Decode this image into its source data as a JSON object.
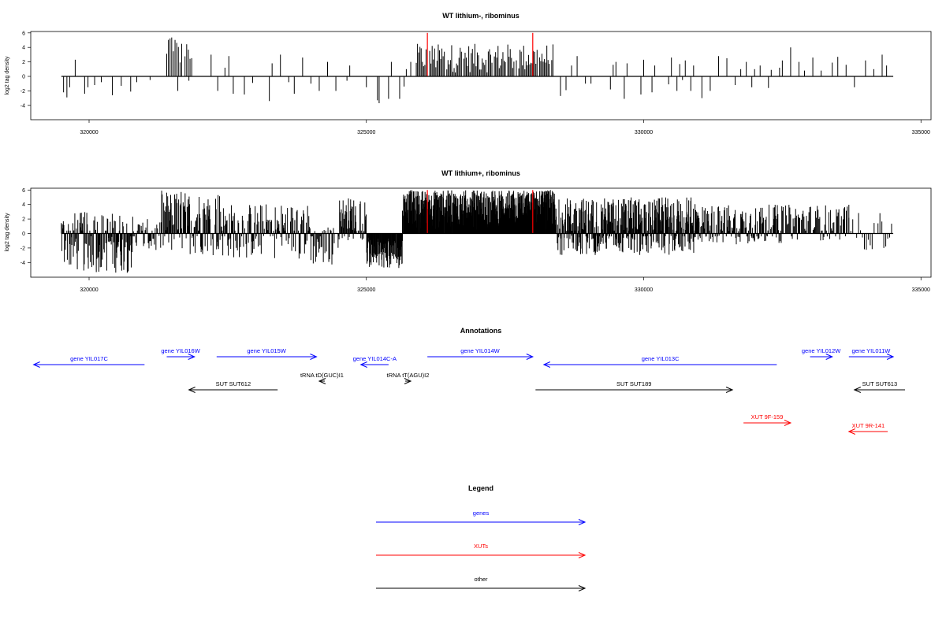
{
  "colors": {
    "gene": "#0000ff",
    "xut": "#ff0000",
    "other": "#000000",
    "marker": "#ff0000",
    "bars": "#000000"
  },
  "chart_data": [
    {
      "type": "bar",
      "title": "WT lithium-, ribominus",
      "ylabel": "log2 tag density",
      "xlim": [
        319000,
        335000
      ],
      "ylim": [
        -6,
        6.5
      ],
      "x_ticks": [
        "320000",
        "325000",
        "330000",
        "335000"
      ],
      "y_ticks": [
        "6",
        "4",
        "2",
        "0",
        "-2",
        "-4"
      ],
      "baseline": [
        319500,
        334500
      ],
      "markers": [
        326100,
        328000
      ],
      "dense_regions": [
        {
          "start": 325900,
          "end": 328400,
          "min": 0.5,
          "max": 4.5,
          "step": 22
        },
        {
          "start": 321400,
          "end": 321850,
          "min": 1.5,
          "max": 5.4,
          "step": 30
        }
      ],
      "sparse_bars": [
        [
          319540,
          -2.2
        ],
        [
          319600,
          -2.9
        ],
        [
          319650,
          -1.5
        ],
        [
          319750,
          2.3
        ],
        [
          319920,
          -2.4
        ],
        [
          319980,
          -1.5
        ],
        [
          320100,
          -1.2
        ],
        [
          320220,
          -0.8
        ],
        [
          320420,
          -2.6
        ],
        [
          320580,
          -1.3
        ],
        [
          320750,
          -2.1
        ],
        [
          320860,
          -0.8
        ],
        [
          321100,
          -0.5
        ],
        [
          321600,
          -2.0
        ],
        [
          321800,
          -0.6
        ],
        [
          322200,
          3.0
        ],
        [
          322320,
          -2.0
        ],
        [
          322450,
          1.2
        ],
        [
          322520,
          2.8
        ],
        [
          322600,
          -2.4
        ],
        [
          322800,
          -2.5
        ],
        [
          322950,
          -0.9
        ],
        [
          323250,
          -3.4
        ],
        [
          323300,
          1.8
        ],
        [
          323450,
          3.0
        ],
        [
          323600,
          -0.8
        ],
        [
          323700,
          -2.4
        ],
        [
          323850,
          2.6
        ],
        [
          324000,
          -1.0
        ],
        [
          324150,
          -2.0
        ],
        [
          324300,
          2.0
        ],
        [
          324450,
          -2.0
        ],
        [
          324650,
          -0.6
        ],
        [
          324700,
          1.5
        ],
        [
          325000,
          -1.5
        ],
        [
          325200,
          -3.3
        ],
        [
          325230,
          -3.7
        ],
        [
          325400,
          -3.1
        ],
        [
          325450,
          2.0
        ],
        [
          325600,
          -3.1
        ],
        [
          325680,
          -1.4
        ],
        [
          325720,
          1.0
        ],
        [
          325800,
          2.0
        ],
        [
          328500,
          -2.7
        ],
        [
          328600,
          -1.9
        ],
        [
          328700,
          1.5
        ],
        [
          328800,
          2.8
        ],
        [
          328950,
          -1.0
        ],
        [
          329050,
          -1.0
        ],
        [
          329400,
          -1.8
        ],
        [
          329450,
          1.6
        ],
        [
          329500,
          2.0
        ],
        [
          329650,
          -3.1
        ],
        [
          329700,
          1.8
        ],
        [
          329950,
          -2.5
        ],
        [
          330000,
          2.3
        ],
        [
          330150,
          -2.2
        ],
        [
          330200,
          1.5
        ],
        [
          330450,
          -1.1
        ],
        [
          330500,
          2.6
        ],
        [
          330600,
          -2.0
        ],
        [
          330650,
          1.7
        ],
        [
          330700,
          -0.5
        ],
        [
          330750,
          2.2
        ],
        [
          330850,
          -2.0
        ],
        [
          330900,
          1.5
        ],
        [
          331050,
          -3.0
        ],
        [
          331200,
          -2.0
        ],
        [
          331350,
          2.8
        ],
        [
          331500,
          2.5
        ],
        [
          331650,
          -1.2
        ],
        [
          331750,
          1.0
        ],
        [
          331850,
          2.0
        ],
        [
          331950,
          -1.5
        ],
        [
          332000,
          1.0
        ],
        [
          332100,
          1.5
        ],
        [
          332250,
          -1.6
        ],
        [
          332300,
          0.9
        ],
        [
          332450,
          1.2
        ],
        [
          332500,
          2.2
        ],
        [
          332650,
          4.0
        ],
        [
          332800,
          2.0
        ],
        [
          332900,
          0.8
        ],
        [
          333050,
          2.6
        ],
        [
          333200,
          0.8
        ],
        [
          333400,
          1.9
        ],
        [
          333500,
          2.7
        ],
        [
          333650,
          1.6
        ],
        [
          333800,
          -1.5
        ],
        [
          334000,
          2.2
        ],
        [
          334150,
          1.0
        ],
        [
          334300,
          3.0
        ],
        [
          334380,
          1.5
        ]
      ]
    },
    {
      "type": "bar",
      "title": "WT lithium+, ribominus",
      "ylabel": "log2 tag density",
      "xlim": [
        319000,
        335000
      ],
      "ylim": [
        -6,
        6.5
      ],
      "x_ticks": [
        "320000",
        "325000",
        "330000",
        "335000"
      ],
      "y_ticks": [
        "6",
        "4",
        "2",
        "0",
        "-2",
        "-4"
      ],
      "baseline": [
        319500,
        334500
      ],
      "markers": [
        326100,
        328000
      ],
      "dense_regions": [
        {
          "start": 319500,
          "end": 320800,
          "min": -5.5,
          "max": 3.0,
          "step": 9
        },
        {
          "start": 320800,
          "end": 321300,
          "min": -3.0,
          "max": 2.0,
          "step": 14
        },
        {
          "start": 321300,
          "end": 322400,
          "min": -3.0,
          "max": 6.0,
          "step": 9
        },
        {
          "start": 322400,
          "end": 324000,
          "min": -3.5,
          "max": 4.2,
          "step": 11
        },
        {
          "start": 324000,
          "end": 324500,
          "min": -4.5,
          "max": 1.0,
          "step": 14
        },
        {
          "start": 324500,
          "end": 325000,
          "min": -1.0,
          "max": 5.0,
          "step": 8
        },
        {
          "start": 325000,
          "end": 325650,
          "min": -4.8,
          "max": -0.5,
          "step": 5
        },
        {
          "start": 325650,
          "end": 328400,
          "min": 0.5,
          "max": 6.0,
          "step": 4
        },
        {
          "start": 328400,
          "end": 331000,
          "min": -3.0,
          "max": 5.0,
          "step": 6
        },
        {
          "start": 331000,
          "end": 332500,
          "min": -1.5,
          "max": 4.0,
          "step": 10
        },
        {
          "start": 332500,
          "end": 333700,
          "min": -1.0,
          "max": 4.0,
          "step": 15
        },
        {
          "start": 333700,
          "end": 334500,
          "min": -2.5,
          "max": 3.0,
          "step": 35
        }
      ],
      "sparse_bars": []
    }
  ],
  "annotations": {
    "title": "Annotations",
    "features": [
      {
        "label": "gene YIL017C",
        "type": "gene",
        "start": 319000,
        "end": 321000,
        "strand": "-",
        "row": 1
      },
      {
        "label": "gene YIL016W",
        "type": "gene",
        "start": 321400,
        "end": 321900,
        "strand": "+",
        "row": 0
      },
      {
        "label": "gene YIL015W",
        "type": "gene",
        "start": 322300,
        "end": 324100,
        "strand": "+",
        "row": 0
      },
      {
        "label": "tRNA tD(GUC)I1",
        "type": "other",
        "start": 324150,
        "end": 324250,
        "strand": "-",
        "row": 2
      },
      {
        "label": "gene YIL014C-A",
        "type": "gene",
        "start": 324900,
        "end": 325400,
        "strand": "-",
        "row": 1
      },
      {
        "label": "tRNA tT(AGU)I2",
        "type": "other",
        "start": 325700,
        "end": 325800,
        "strand": "+",
        "row": 2
      },
      {
        "label": "gene YIL014W",
        "type": "gene",
        "start": 326100,
        "end": 328000,
        "strand": "+",
        "row": 0
      },
      {
        "label": "gene YIL013C",
        "type": "gene",
        "start": 328200,
        "end": 332400,
        "strand": "-",
        "row": 1
      },
      {
        "label": "gene YIL012W",
        "type": "gene",
        "start": 333000,
        "end": 333400,
        "strand": "+",
        "row": 0
      },
      {
        "label": "gene YIL011W",
        "type": "gene",
        "start": 333700,
        "end": 334500,
        "strand": "+",
        "row": 0
      },
      {
        "label": "SUT SUT612",
        "type": "other",
        "start": 321800,
        "end": 323400,
        "strand": "-",
        "row": 3
      },
      {
        "label": "SUT SUT189",
        "type": "other",
        "start": 328050,
        "end": 331600,
        "strand": "+",
        "row": 3
      },
      {
        "label": "SUT SUT613",
        "type": "other",
        "start": 333800,
        "end": 334900,
        "strand": "-",
        "row": 3
      },
      {
        "label": "XUT 9F-159",
        "type": "xut",
        "start": 331800,
        "end": 332650,
        "strand": "+",
        "row": 4
      },
      {
        "label": "XUT 9R-141",
        "type": "xut",
        "start": 333700,
        "end": 334400,
        "strand": "-",
        "row": 5
      }
    ]
  },
  "legend": {
    "title": "Legend",
    "items": [
      {
        "label": "genes",
        "type": "gene"
      },
      {
        "label": "XUTs",
        "type": "xut"
      },
      {
        "label": "other",
        "type": "other"
      }
    ]
  }
}
